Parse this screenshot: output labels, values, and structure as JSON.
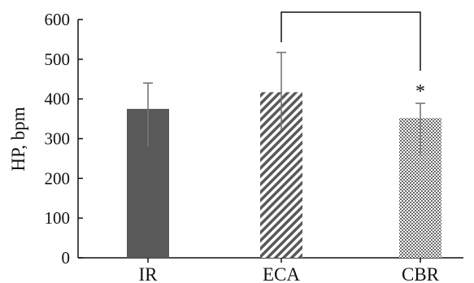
{
  "chart_data": {
    "type": "bar",
    "categories": [
      "IR",
      "ECA",
      "CBR"
    ],
    "values": [
      375,
      417,
      352
    ],
    "errors": [
      65,
      100,
      37
    ],
    "ylabel": "HP, bpm",
    "xlabel": "",
    "ylim": [
      0,
      600
    ],
    "yticks": [
      "0",
      "100",
      "200",
      "300",
      "400",
      "500",
      "600"
    ],
    "grid": false,
    "fills": [
      "solid",
      "diagonal-hatch",
      "checkered"
    ],
    "bar_color": "#595959",
    "significance": {
      "from": "ECA",
      "to": "CBR",
      "label": "*"
    }
  }
}
